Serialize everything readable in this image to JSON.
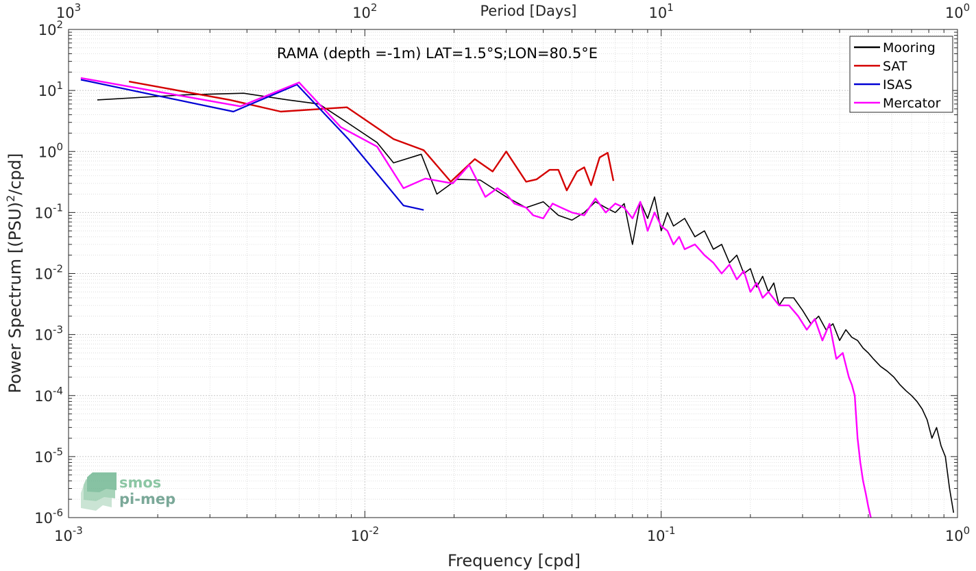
{
  "chart_data": {
    "type": "line",
    "title": "",
    "annotation": "RAMA (depth =-1m) LAT=1.5°S;LON=80.5°E",
    "xlabel": "Frequency [cpd]",
    "ylabel_main": "Power Spectrum [(PSU)",
    "ylabel_sup": "2",
    "ylabel_tail": "/cpd]",
    "top_xlabel": "Period [Days]",
    "x_scale": "log",
    "y_scale": "log",
    "xlim": [
      0.001,
      1
    ],
    "ylim": [
      1e-06,
      100
    ],
    "grid": true,
    "legend_position": "top-right",
    "x_ticks": [
      {
        "value": 0.001,
        "base": "10",
        "exp": "-3"
      },
      {
        "value": 0.01,
        "base": "10",
        "exp": "-2"
      },
      {
        "value": 0.1,
        "base": "10",
        "exp": "-1"
      },
      {
        "value": 1,
        "base": "10",
        "exp": "0"
      }
    ],
    "top_ticks": [
      {
        "value": 0.001,
        "base": "10",
        "exp": "3"
      },
      {
        "value": 0.01,
        "base": "10",
        "exp": "2"
      },
      {
        "value": 0.1,
        "base": "10",
        "exp": "1"
      },
      {
        "value": 1,
        "base": "10",
        "exp": "0"
      }
    ],
    "y_ticks": [
      {
        "value": 100,
        "base": "10",
        "exp": "2"
      },
      {
        "value": 10,
        "base": "10",
        "exp": "1"
      },
      {
        "value": 1,
        "base": "10",
        "exp": "0"
      },
      {
        "value": 0.1,
        "base": "10",
        "exp": "-1"
      },
      {
        "value": 0.01,
        "base": "10",
        "exp": "-2"
      },
      {
        "value": 0.001,
        "base": "10",
        "exp": "-3"
      },
      {
        "value": 0.0001,
        "base": "10",
        "exp": "-4"
      },
      {
        "value": 1e-05,
        "base": "10",
        "exp": "-5"
      },
      {
        "value": 1e-06,
        "base": "10",
        "exp": "-6"
      }
    ],
    "series": [
      {
        "name": "Mooring",
        "color": "#000000",
        "width": 1.6,
        "x": [
          0.00125,
          0.0025,
          0.0039,
          0.0055,
          0.007,
          0.0087,
          0.011,
          0.0125,
          0.0155,
          0.0175,
          0.0205,
          0.0245,
          0.03,
          0.035,
          0.04,
          0.045,
          0.05,
          0.055,
          0.06,
          0.065,
          0.07,
          0.075,
          0.08,
          0.085,
          0.09,
          0.095,
          0.1,
          0.105,
          0.11,
          0.12,
          0.13,
          0.14,
          0.15,
          0.16,
          0.17,
          0.18,
          0.19,
          0.2,
          0.21,
          0.22,
          0.23,
          0.24,
          0.25,
          0.26,
          0.28,
          0.3,
          0.32,
          0.34,
          0.36,
          0.38,
          0.4,
          0.42,
          0.44,
          0.46,
          0.48,
          0.5,
          0.52,
          0.55,
          0.58,
          0.61,
          0.64,
          0.67,
          0.7,
          0.73,
          0.76,
          0.79,
          0.82,
          0.85,
          0.88,
          0.91,
          0.94,
          0.97
        ],
        "y": [
          7,
          8.5,
          9,
          7,
          6,
          3,
          1.4,
          0.65,
          0.9,
          0.2,
          0.35,
          0.34,
          0.18,
          0.12,
          0.15,
          0.09,
          0.075,
          0.1,
          0.15,
          0.12,
          0.1,
          0.14,
          0.03,
          0.15,
          0.08,
          0.18,
          0.05,
          0.1,
          0.06,
          0.08,
          0.04,
          0.05,
          0.025,
          0.03,
          0.015,
          0.02,
          0.01,
          0.012,
          0.006,
          0.009,
          0.005,
          0.007,
          0.003,
          0.004,
          0.004,
          0.0025,
          0.0015,
          0.002,
          0.0012,
          0.0015,
          0.0008,
          0.0012,
          0.0009,
          0.0008,
          0.0006,
          0.0005,
          0.0004,
          0.0003,
          0.00025,
          0.0002,
          0.00015,
          0.00012,
          0.0001,
          8e-05,
          6e-05,
          4e-05,
          2e-05,
          3e-05,
          1.5e-05,
          1e-05,
          3e-06,
          1.2e-06
        ]
      },
      {
        "name": "SAT",
        "color": "#d40000",
        "width": 2.4,
        "x": [
          0.0016,
          0.0035,
          0.0052,
          0.0087,
          0.0125,
          0.0158,
          0.0195,
          0.0235,
          0.027,
          0.03,
          0.035,
          0.038,
          0.042,
          0.045,
          0.048,
          0.052,
          0.055,
          0.058,
          0.062,
          0.066,
          0.069
        ],
        "y": [
          14,
          7,
          4.5,
          5.3,
          1.6,
          1.05,
          0.32,
          0.75,
          0.47,
          1.0,
          0.32,
          0.35,
          0.5,
          0.5,
          0.23,
          0.47,
          0.55,
          0.28,
          0.8,
          0.95,
          0.33
        ]
      },
      {
        "name": "ISAS",
        "color": "#0000d4",
        "width": 2.2,
        "x": [
          0.0011,
          0.0036,
          0.0059,
          0.0088,
          0.0135,
          0.0158
        ],
        "y": [
          15,
          4.5,
          12.5,
          1.6,
          0.13,
          0.11
        ]
      },
      {
        "name": "Mercator",
        "color": "#ff00ff",
        "width": 2.4,
        "x": [
          0.0011,
          0.0038,
          0.006,
          0.0083,
          0.011,
          0.0135,
          0.016,
          0.0198,
          0.0225,
          0.0255,
          0.028,
          0.03,
          0.032,
          0.035,
          0.037,
          0.04,
          0.043,
          0.046,
          0.05,
          0.055,
          0.06,
          0.065,
          0.07,
          0.075,
          0.08,
          0.085,
          0.09,
          0.095,
          0.1,
          0.105,
          0.11,
          0.115,
          0.12,
          0.13,
          0.14,
          0.15,
          0.16,
          0.17,
          0.18,
          0.19,
          0.2,
          0.21,
          0.22,
          0.23,
          0.25,
          0.27,
          0.29,
          0.31,
          0.33,
          0.35,
          0.37,
          0.39,
          0.41,
          0.43,
          0.44,
          0.45,
          0.46,
          0.47,
          0.48,
          0.49,
          0.5,
          0.51
        ],
        "y": [
          16,
          5.5,
          13.5,
          2.5,
          1.2,
          0.25,
          0.36,
          0.3,
          0.6,
          0.18,
          0.25,
          0.2,
          0.14,
          0.12,
          0.09,
          0.08,
          0.14,
          0.12,
          0.1,
          0.09,
          0.17,
          0.1,
          0.14,
          0.12,
          0.08,
          0.15,
          0.05,
          0.1,
          0.06,
          0.05,
          0.03,
          0.04,
          0.025,
          0.03,
          0.02,
          0.015,
          0.01,
          0.014,
          0.008,
          0.011,
          0.005,
          0.007,
          0.004,
          0.005,
          0.003,
          0.003,
          0.002,
          0.0012,
          0.0018,
          0.0008,
          0.0015,
          0.0004,
          0.0005,
          0.0002,
          0.00015,
          0.0001,
          2e-05,
          8e-06,
          4e-06,
          2.5e-06,
          1.5e-06,
          1e-06
        ]
      }
    ]
  },
  "logo": {
    "line1": "smos",
    "line2": "pi-mep"
  }
}
